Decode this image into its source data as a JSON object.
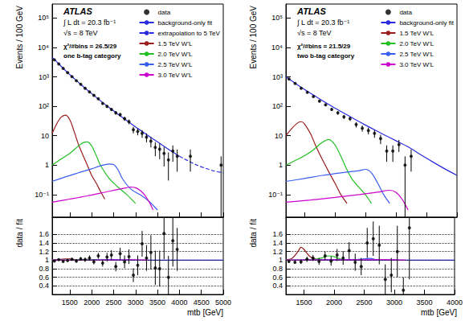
{
  "chart_data": [
    {
      "type": "scatter",
      "ylabel": "Events / 100 GeV",
      "log": "y",
      "tick_labels": "y",
      "grid": false,
      "legend": "upper right",
      "annotations": [
        "ATLAS",
        "∫ L dt = 20.3 fb⁻¹",
        "√s = 8 TeV",
        "χ²/#bins = 26.5/29",
        "one b-tag category"
      ],
      "xlim": [
        1100,
        5000
      ],
      "xticks": [
        1500,
        2000,
        2500,
        3000,
        3500,
        4000,
        4500,
        5000
      ],
      "ylim": [
        0.017,
        300000
      ],
      "yticks": [
        {
          "value": 0.1,
          "label": "10⁻¹"
        },
        1,
        10,
        {
          "value": 100,
          "label": "10²"
        },
        {
          "value": 1000,
          "label": "10³"
        },
        {
          "value": 10000,
          "label": "10⁴"
        },
        {
          "value": 100000,
          "label": "10⁵"
        }
      ],
      "series": [
        {
          "name": "data",
          "type": "scatter",
          "color": "#000000",
          "marker": "circle",
          "x": [
            1150,
            1250,
            1350,
            1450,
            1550,
            1650,
            1750,
            1850,
            1950,
            2050,
            2150,
            2250,
            2350,
            2450,
            2550,
            2650,
            2750,
            2850,
            2950,
            3050,
            3150,
            3250,
            3350,
            3450,
            3550,
            3650,
            3750,
            3850,
            3950,
            4250,
            4950
          ],
          "values": [
            3800,
            2750,
            1950,
            1400,
            1020,
            740,
            560,
            410,
            310,
            235,
            180,
            125,
            100,
            78,
            60,
            52,
            38,
            30,
            16,
            14,
            12,
            9,
            6.5,
            4,
            3.5,
            2.5,
            1.5,
            3,
            2,
            2,
            1
          ],
          "errors": [
            62,
            52,
            44,
            37,
            32,
            27,
            24,
            20,
            18,
            15,
            13,
            11,
            10,
            9,
            8,
            7,
            6,
            5.5,
            4,
            3.7,
            3.5,
            3,
            2.5,
            2,
            1.9,
            1.6,
            1.2,
            1.7,
            1.4,
            1.4,
            1
          ]
        },
        {
          "name": "background-only fit",
          "type": "line",
          "color": "#2a2ae0",
          "line_style": "solid",
          "x": [
            1100,
            1200,
            1400,
            1600,
            1800,
            2000,
            2200,
            2400,
            2600,
            2800,
            3000,
            3200,
            3400,
            3600,
            3800,
            4000
          ],
          "values": [
            4600,
            3300,
            1650,
            880,
            480,
            270,
            155,
            90,
            54,
            33,
            20,
            12.5,
            7.8,
            4.9,
            3.1,
            2.0
          ]
        },
        {
          "name": "extrapolation to 5 TeV",
          "type": "line",
          "color": "#2a2ae0",
          "line_style": "dashed",
          "x": [
            4000,
            4200,
            4400,
            4600,
            4800,
            5000
          ],
          "values": [
            2.0,
            1.4,
            1.0,
            0.78,
            0.63,
            0.55
          ]
        },
        {
          "name": "1.5 TeV W'L",
          "type": "line",
          "color": "#9b1c1c",
          "line_style": "solid",
          "x": [
            1100,
            1200,
            1300,
            1400,
            1500,
            1600,
            1700,
            1800,
            1900,
            2000,
            2100,
            2200,
            2300
          ],
          "values": [
            12,
            25,
            42,
            50,
            35,
            14,
            5,
            2.2,
            1.0,
            0.45,
            0.25,
            0.13,
            0.07
          ]
        },
        {
          "name": "2.0 TeV W'L",
          "type": "line",
          "color": "#22c022",
          "line_style": "solid",
          "x": [
            1100,
            1300,
            1500,
            1700,
            1800,
            1900,
            2000,
            2100,
            2200,
            2400,
            2600,
            2800,
            3000
          ],
          "values": [
            1.0,
            1.6,
            2.5,
            4.5,
            5.8,
            6.2,
            4.5,
            2.2,
            1.0,
            0.35,
            0.18,
            0.1,
            0.05
          ]
        },
        {
          "name": "2.5 TeV W'L",
          "type": "line",
          "color": "#3a5ef0",
          "line_style": "solid",
          "x": [
            1100,
            1400,
            1700,
            2000,
            2200,
            2400,
            2500,
            2600,
            2700,
            2900,
            3100,
            3300,
            3500
          ],
          "values": [
            0.28,
            0.4,
            0.55,
            0.75,
            0.95,
            1.1,
            1.05,
            0.7,
            0.35,
            0.15,
            0.1,
            0.06,
            0.03
          ]
        },
        {
          "name": "3.0 TeV W'L",
          "type": "line",
          "color": "#cc00cc",
          "line_style": "solid",
          "x": [
            1100,
            1500,
            1900,
            2300,
            2700,
            2900,
            3000,
            3100,
            3200,
            3300,
            3400
          ],
          "values": [
            0.055,
            0.07,
            0.09,
            0.12,
            0.16,
            0.18,
            0.17,
            0.14,
            0.1,
            0.06,
            0.03
          ]
        }
      ]
    },
    {
      "type": "scatter",
      "ylabel": "data / fit",
      "xlabel": "mtb [GeV]",
      "grid": true,
      "xlim": [
        1100,
        5000
      ],
      "xticks": [
        1500,
        2000,
        2500,
        3000,
        3500,
        4000,
        4500,
        5000
      ],
      "ylim": [
        0.2,
        2.0
      ],
      "yticks": [
        0.4,
        0.6,
        0.8,
        1,
        1.2,
        1.4,
        1.6
      ],
      "series": [
        {
          "name": "data",
          "type": "scatter",
          "color": "#000000",
          "marker": "circle",
          "x": [
            1150,
            1250,
            1350,
            1450,
            1550,
            1650,
            1750,
            1850,
            1950,
            2050,
            2150,
            2250,
            2350,
            2450,
            2550,
            2650,
            2750,
            2850,
            2950,
            3050,
            3150,
            3250,
            3350,
            3450,
            3550,
            3650,
            3750,
            3850,
            3950
          ],
          "values": [
            0.98,
            1.01,
            0.97,
            0.99,
            1.02,
            0.98,
            1.03,
            1.01,
            1.05,
            0.96,
            1.1,
            0.93,
            1.07,
            1.12,
            0.85,
            1.15,
            0.96,
            1.08,
            0.65,
            0.88,
            1.38,
            1.05,
            1.18,
            0.82,
            0.8,
            1.62,
            0.6,
            1.45,
            1.25
          ],
          "errors": [
            0.02,
            0.02,
            0.02,
            0.03,
            0.03,
            0.04,
            0.04,
            0.05,
            0.06,
            0.06,
            0.07,
            0.08,
            0.1,
            0.11,
            0.11,
            0.14,
            0.15,
            0.17,
            0.16,
            0.23,
            0.3,
            0.3,
            0.4,
            0.4,
            0.42,
            0.6,
            0.5,
            0.6,
            0.5
          ]
        },
        {
          "name": "background-only fit",
          "type": "line",
          "color": "#2a2ae0",
          "line_style": "solid",
          "x": [
            1100,
            5000
          ],
          "values": [
            1,
            1
          ]
        },
        {
          "name": "1.5 TeV W'L",
          "type": "line",
          "color": "#9b1c1c",
          "line_style": "solid",
          "x": [
            1100,
            1200,
            1300,
            1400,
            1500,
            1600,
            1800,
            2000
          ],
          "values": [
            1.003,
            1.008,
            1.02,
            1.03,
            1.03,
            1.015,
            1.005,
            1.0
          ]
        },
        {
          "name": "2.0 TeV W'L",
          "type": "line",
          "color": "#22c022",
          "line_style": "solid",
          "x": [
            1100,
            1500,
            1800,
            1900,
            2000,
            2100,
            2300
          ],
          "values": [
            1.0,
            1.003,
            1.012,
            1.02,
            1.016,
            1.008,
            1.0
          ]
        },
        {
          "name": "2.5 TeV W'L",
          "type": "line",
          "color": "#3a5ef0",
          "line_style": "solid",
          "x": [
            1100,
            2000,
            2400,
            2500,
            2700,
            3000
          ],
          "values": [
            1.0,
            1.003,
            1.012,
            1.015,
            1.006,
            1.0
          ]
        },
        {
          "name": "3.0 TeV W'L",
          "type": "line",
          "color": "#cc00cc",
          "line_style": "solid",
          "x": [
            1100,
            2500,
            2900,
            3100,
            3300
          ],
          "values": [
            1.0,
            1.004,
            1.009,
            1.006,
            1.0
          ]
        }
      ]
    },
    {
      "type": "scatter",
      "ylabel": "Events / 100 GeV",
      "log": "y",
      "tick_labels": "y",
      "grid": false,
      "legend": "upper right",
      "annotations": [
        "ATLAS",
        "∫ L dt = 20.3 fb⁻¹",
        "√s = 8 TeV",
        "χ²/#bins = 21.5/29",
        "two b-tag category"
      ],
      "xlim": [
        1200,
        4000
      ],
      "xticks": [
        1500,
        2000,
        2500,
        3000,
        3500,
        4000
      ],
      "ylim": [
        0.017,
        300000
      ],
      "yticks": [
        {
          "value": 0.1,
          "label": "10⁻¹"
        },
        1,
        10,
        {
          "value": 100,
          "label": "10²"
        },
        {
          "value": 1000,
          "label": "10³"
        },
        {
          "value": 10000,
          "label": "10⁴"
        },
        {
          "value": 100000,
          "label": "10⁵"
        }
      ],
      "series": [
        {
          "name": "data",
          "type": "scatter",
          "color": "#000000",
          "marker": "circle",
          "x": [
            1250,
            1350,
            1450,
            1550,
            1650,
            1750,
            1850,
            1950,
            2050,
            2150,
            2250,
            2350,
            2450,
            2550,
            2650,
            2750,
            2850,
            2950,
            3050,
            3150,
            3250
          ],
          "values": [
            850,
            600,
            410,
            300,
            215,
            150,
            112,
            78,
            60,
            44,
            38,
            24,
            18,
            15,
            12,
            8,
            3,
            3,
            5,
            1,
            2
          ],
          "errors": [
            29,
            24,
            20,
            17,
            15,
            12,
            11,
            9,
            8,
            7,
            6,
            5,
            4.2,
            3.9,
            3.5,
            2.8,
            1.7,
            1.7,
            2.2,
            1,
            1.4
          ]
        },
        {
          "name": "background-only fit",
          "type": "line",
          "color": "#2a2ae0",
          "line_style": "solid",
          "x": [
            1200,
            1400,
            1600,
            1800,
            2000,
            2200,
            2400,
            2600,
            2800,
            3000,
            3200,
            3400,
            3600,
            3800,
            4000
          ],
          "values": [
            1000,
            520,
            280,
            155,
            88,
            51,
            30,
            18,
            11,
            6.8,
            4.2,
            2.3,
            1.3,
            0.75,
            0.45
          ]
        },
        {
          "name": "1.5 TeV W'L",
          "type": "line",
          "color": "#9b1c1c",
          "line_style": "solid",
          "x": [
            1200,
            1300,
            1400,
            1450,
            1500,
            1600,
            1700,
            1800,
            1900,
            2000,
            2100,
            2200
          ],
          "values": [
            10,
            18,
            28,
            30,
            26,
            12,
            4,
            1.5,
            0.6,
            0.25,
            0.1,
            0.05
          ]
        },
        {
          "name": "2.0 TeV W'L",
          "type": "line",
          "color": "#22c022",
          "line_style": "solid",
          "x": [
            1200,
            1400,
            1600,
            1800,
            1900,
            2000,
            2100,
            2200,
            2300,
            2500,
            2600
          ],
          "values": [
            1.0,
            1.6,
            2.8,
            6,
            7.5,
            5,
            2,
            0.7,
            0.3,
            0.1,
            0.05
          ]
        },
        {
          "name": "2.5 TeV W'L",
          "type": "line",
          "color": "#3a5ef0",
          "line_style": "solid",
          "x": [
            1200,
            1500,
            1800,
            2100,
            2400,
            2500,
            2600,
            2700,
            2800,
            2900
          ],
          "values": [
            0.28,
            0.35,
            0.45,
            0.55,
            0.65,
            0.72,
            0.55,
            0.25,
            0.1,
            0.05
          ]
        },
        {
          "name": "3.0 TeV W'L",
          "type": "line",
          "color": "#cc00cc",
          "line_style": "solid",
          "x": [
            1200,
            1600,
            2000,
            2400,
            2700,
            2900,
            3000,
            3100,
            3200
          ],
          "values": [
            0.055,
            0.065,
            0.08,
            0.1,
            0.12,
            0.14,
            0.12,
            0.07,
            0.03
          ]
        }
      ]
    },
    {
      "type": "scatter",
      "ylabel": "data / fit",
      "xlabel": "mtb [GeV]",
      "grid": true,
      "xlim": [
        1200,
        4000
      ],
      "xticks": [
        1500,
        2000,
        2500,
        3000,
        3500,
        4000
      ],
      "ylim": [
        0.2,
        2.0
      ],
      "yticks": [
        0.4,
        0.6,
        0.8,
        1,
        1.2,
        1.4,
        1.6
      ],
      "series": [
        {
          "name": "data",
          "type": "scatter",
          "color": "#000000",
          "marker": "circle",
          "x": [
            1250,
            1350,
            1450,
            1550,
            1650,
            1750,
            1850,
            1950,
            2050,
            2150,
            2250,
            2350,
            2450,
            2550,
            2650,
            2750,
            2850,
            2950,
            3050,
            3150,
            3250
          ],
          "values": [
            0.97,
            0.95,
            0.96,
            1.02,
            1.05,
            0.97,
            1.1,
            0.98,
            1.12,
            1.05,
            1.22,
            0.95,
            0.85,
            1.4,
            1.5,
            1.35,
            0.55,
            0.65,
            1.2,
            0.3,
            1.75
          ],
          "errors": [
            0.03,
            0.04,
            0.05,
            0.06,
            0.07,
            0.08,
            0.1,
            0.11,
            0.14,
            0.16,
            0.2,
            0.2,
            0.2,
            0.35,
            0.4,
            0.45,
            0.35,
            0.4,
            0.6,
            0.3,
            1.2
          ]
        },
        {
          "name": "background-only fit",
          "type": "line",
          "color": "#2a2ae0",
          "line_style": "solid",
          "x": [
            1200,
            4000
          ],
          "values": [
            1,
            1
          ]
        },
        {
          "name": "1.5 TeV W'L",
          "type": "line",
          "color": "#9b1c1c",
          "line_style": "solid",
          "x": [
            1200,
            1300,
            1400,
            1450,
            1500,
            1600,
            1700,
            1800
          ],
          "values": [
            1.01,
            1.04,
            1.2,
            1.3,
            1.25,
            1.08,
            1.02,
            1.0
          ]
        },
        {
          "name": "2.0 TeV W'L",
          "type": "line",
          "color": "#22c022",
          "line_style": "solid",
          "x": [
            1200,
            1600,
            1800,
            1900,
            2000,
            2100,
            2200
          ],
          "values": [
            1.0,
            1.01,
            1.05,
            1.1,
            1.08,
            1.03,
            1.0
          ]
        },
        {
          "name": "2.5 TeV W'L",
          "type": "line",
          "color": "#3a5ef0",
          "line_style": "solid",
          "x": [
            1200,
            2400,
            2600,
            2700,
            2800
          ],
          "values": [
            1.0,
            1.02,
            1.04,
            1.01,
            1.0
          ]
        },
        {
          "name": "3.0 TeV W'L",
          "type": "line",
          "color": "#cc00cc",
          "line_style": "solid",
          "x": [
            1200,
            3000,
            3200
          ],
          "values": [
            1.0,
            1.01,
            1.0
          ]
        }
      ]
    }
  ]
}
